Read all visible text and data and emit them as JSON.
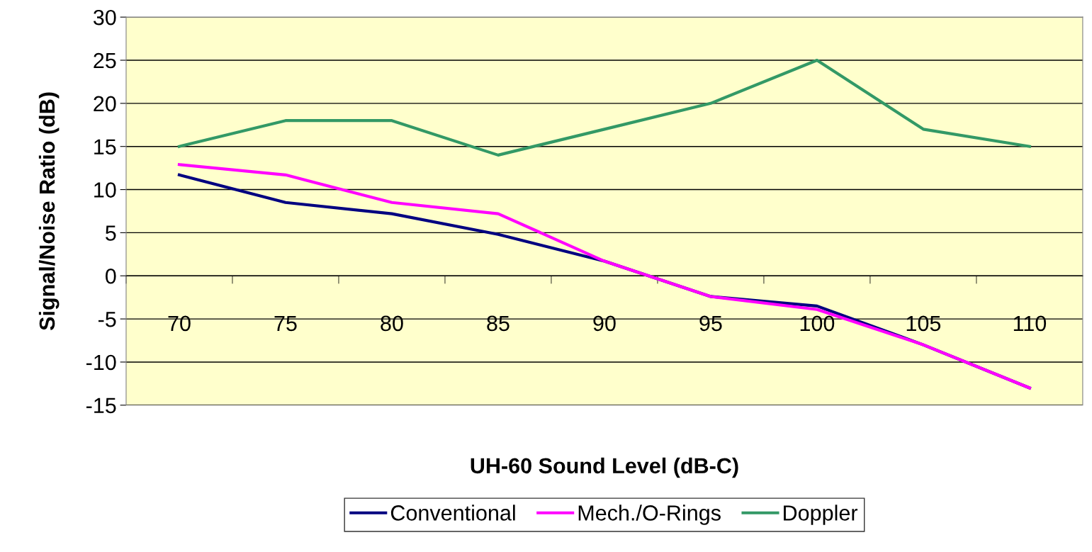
{
  "chart_data": {
    "type": "line",
    "xlabel": "UH-60 Sound Level (dB-C)",
    "ylabel": "Signal/Noise Ratio (dB)",
    "categories": [
      "70",
      "75",
      "80",
      "85",
      "90",
      "95",
      "100",
      "105",
      "110"
    ],
    "series": [
      {
        "name": "Conventional",
        "color": "#000080",
        "values": [
          11.7,
          8.5,
          7.2,
          4.8,
          1.7,
          -2.4,
          -3.5,
          -8,
          -13
        ]
      },
      {
        "name": "Mech./O-Rings",
        "color": "#ff00ff",
        "values": [
          12.9,
          11.7,
          8.5,
          7.2,
          1.7,
          -2.4,
          -3.9,
          -8,
          -13
        ]
      },
      {
        "name": "Doppler",
        "color": "#339966",
        "values": [
          15,
          18,
          18,
          14,
          17,
          20,
          25,
          17,
          15
        ]
      }
    ],
    "ylim": [
      -15,
      30
    ],
    "yticks": [
      -15,
      -10,
      -5,
      0,
      5,
      10,
      15,
      20,
      25,
      30
    ],
    "grid": "y",
    "legend": "bottom",
    "marker": "none",
    "line_style": "solid"
  }
}
